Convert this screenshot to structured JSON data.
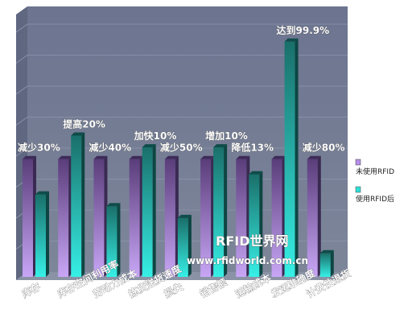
{
  "chart_data": {
    "type": "bar",
    "categories": [
      "库存",
      "库存空间利用率",
      "劳动力成本",
      "拣货送货速度",
      "损失",
      "销售额",
      "运输成本",
      "发运准确度",
      "计费性退货"
    ],
    "series": [
      {
        "name": "未使用RFID",
        "values": [
          38,
          38,
          38,
          38,
          38,
          38,
          38,
          38,
          38
        ]
      },
      {
        "name": "使用RFID后",
        "values": [
          26.6,
          45.6,
          22.8,
          41.8,
          19,
          41.8,
          33.1,
          75.9,
          7.6
        ]
      }
    ],
    "annotations": [
      "减少30%",
      "提高20%",
      "减少40%",
      "加快10%",
      "减少50%",
      "增加10%",
      "降低13%",
      "达到99.9%",
      "减少80%"
    ],
    "ylim": [
      0,
      80
    ],
    "grid": true,
    "legend_position": "right",
    "colors": {
      "series1": "#b48ee8",
      "series2": "#2ee0d8",
      "background": "#6f7890",
      "floor": "#8a93a6"
    }
  },
  "watermark": {
    "line1": "RFID世界网",
    "line2": "www.rfidworld.com.cn"
  }
}
